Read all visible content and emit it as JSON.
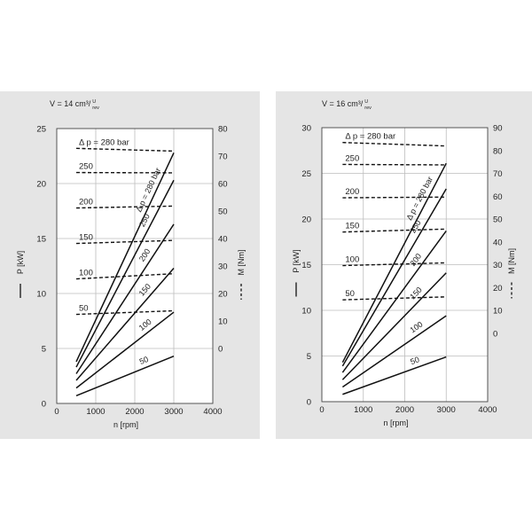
{
  "chart_data": [
    {
      "type": "line",
      "title": "V = 14 cm³/",
      "title_unit_num": "U",
      "title_unit_den": "rev",
      "xlabel": "n [rpm]",
      "ylabel": "P [kW]",
      "y2label": "M [Nm]",
      "xlim": [
        0,
        4000
      ],
      "ylim": [
        0,
        25
      ],
      "y2lim": [
        -20,
        80
      ],
      "xticks": [
        "0",
        "1000",
        "2000",
        "3000",
        "4000"
      ],
      "yticks": [
        "0",
        "5",
        "10",
        "15",
        "20",
        "25"
      ],
      "y2ticks": [
        "0",
        "10",
        "20",
        "30",
        "40",
        "50",
        "60",
        "70",
        "80"
      ],
      "grid": true,
      "power_series": [
        {
          "name": "50",
          "x": [
            500,
            3000
          ],
          "y": [
            0.7,
            4.3
          ]
        },
        {
          "name": "100",
          "x": [
            500,
            3000
          ],
          "y": [
            1.4,
            8.3
          ]
        },
        {
          "name": "150",
          "x": [
            500,
            3000
          ],
          "y": [
            2.1,
            12.3
          ]
        },
        {
          "name": "200",
          "x": [
            500,
            3000
          ],
          "y": [
            2.7,
            16.3
          ]
        },
        {
          "name": "250",
          "x": [
            500,
            3000
          ],
          "y": [
            3.3,
            20.3
          ]
        },
        {
          "name": "Δ p = 280 bar",
          "x": [
            500,
            3000
          ],
          "y": [
            3.8,
            22.8
          ]
        }
      ],
      "torque_series": [
        {
          "name": "50",
          "x": [
            500,
            3000
          ],
          "y": [
            12.4,
            13.7
          ]
        },
        {
          "name": "100",
          "x": [
            500,
            3000
          ],
          "y": [
            25.3,
            27.2
          ]
        },
        {
          "name": "150",
          "x": [
            500,
            3000
          ],
          "y": [
            38.2,
            39.3
          ]
        },
        {
          "name": "200",
          "x": [
            500,
            3000
          ],
          "y": [
            51.1,
            51.8
          ]
        },
        {
          "name": "250",
          "x": [
            500,
            3000
          ],
          "y": [
            64.0,
            63.9
          ]
        },
        {
          "name": "Δ p = 280 bar",
          "x": [
            500,
            3000
          ],
          "y": [
            72.8,
            71.8
          ]
        }
      ]
    },
    {
      "type": "line",
      "title": "V = 16 cm³/",
      "title_unit_num": "U",
      "title_unit_den": "rev",
      "xlabel": "n [rpm]",
      "ylabel": "P [kW]",
      "y2label": "M [Nm]",
      "xlim": [
        0,
        4000
      ],
      "ylim": [
        0,
        30
      ],
      "y2lim": [
        -30,
        90
      ],
      "xticks": [
        "0",
        "1000",
        "2000",
        "3000",
        "4000"
      ],
      "yticks": [
        "0",
        "5",
        "10",
        "15",
        "20",
        "25",
        "30"
      ],
      "y2ticks": [
        "0",
        "10",
        "20",
        "30",
        "40",
        "50",
        "60",
        "70",
        "80",
        "90"
      ],
      "grid": true,
      "power_series": [
        {
          "name": "50",
          "x": [
            500,
            3000
          ],
          "y": [
            0.8,
            4.9
          ]
        },
        {
          "name": "100",
          "x": [
            500,
            3000
          ],
          "y": [
            1.6,
            9.4
          ]
        },
        {
          "name": "150",
          "x": [
            500,
            3000
          ],
          "y": [
            2.4,
            14.1
          ]
        },
        {
          "name": "200",
          "x": [
            500,
            3000
          ],
          "y": [
            3.2,
            18.7
          ]
        },
        {
          "name": "250",
          "x": [
            500,
            3000
          ],
          "y": [
            3.9,
            23.3
          ]
        },
        {
          "name": "Δ p = 280 bar",
          "x": [
            500,
            3000
          ],
          "y": [
            4.3,
            26.1
          ]
        }
      ],
      "torque_series": [
        {
          "name": "50",
          "x": [
            500,
            3000
          ],
          "y": [
            14.6,
            15.9
          ]
        },
        {
          "name": "100",
          "x": [
            500,
            3000
          ],
          "y": [
            29.6,
            30.8
          ]
        },
        {
          "name": "150",
          "x": [
            500,
            3000
          ],
          "y": [
            44.3,
            45.6
          ]
        },
        {
          "name": "200",
          "x": [
            500,
            3000
          ],
          "y": [
            59.3,
            59.6
          ]
        },
        {
          "name": "250",
          "x": [
            500,
            3000
          ],
          "y": [
            73.9,
            73.7
          ]
        },
        {
          "name": "Δ p = 280 bar",
          "x": [
            500,
            3000
          ],
          "y": [
            83.5,
            82.0
          ]
        }
      ]
    }
  ]
}
